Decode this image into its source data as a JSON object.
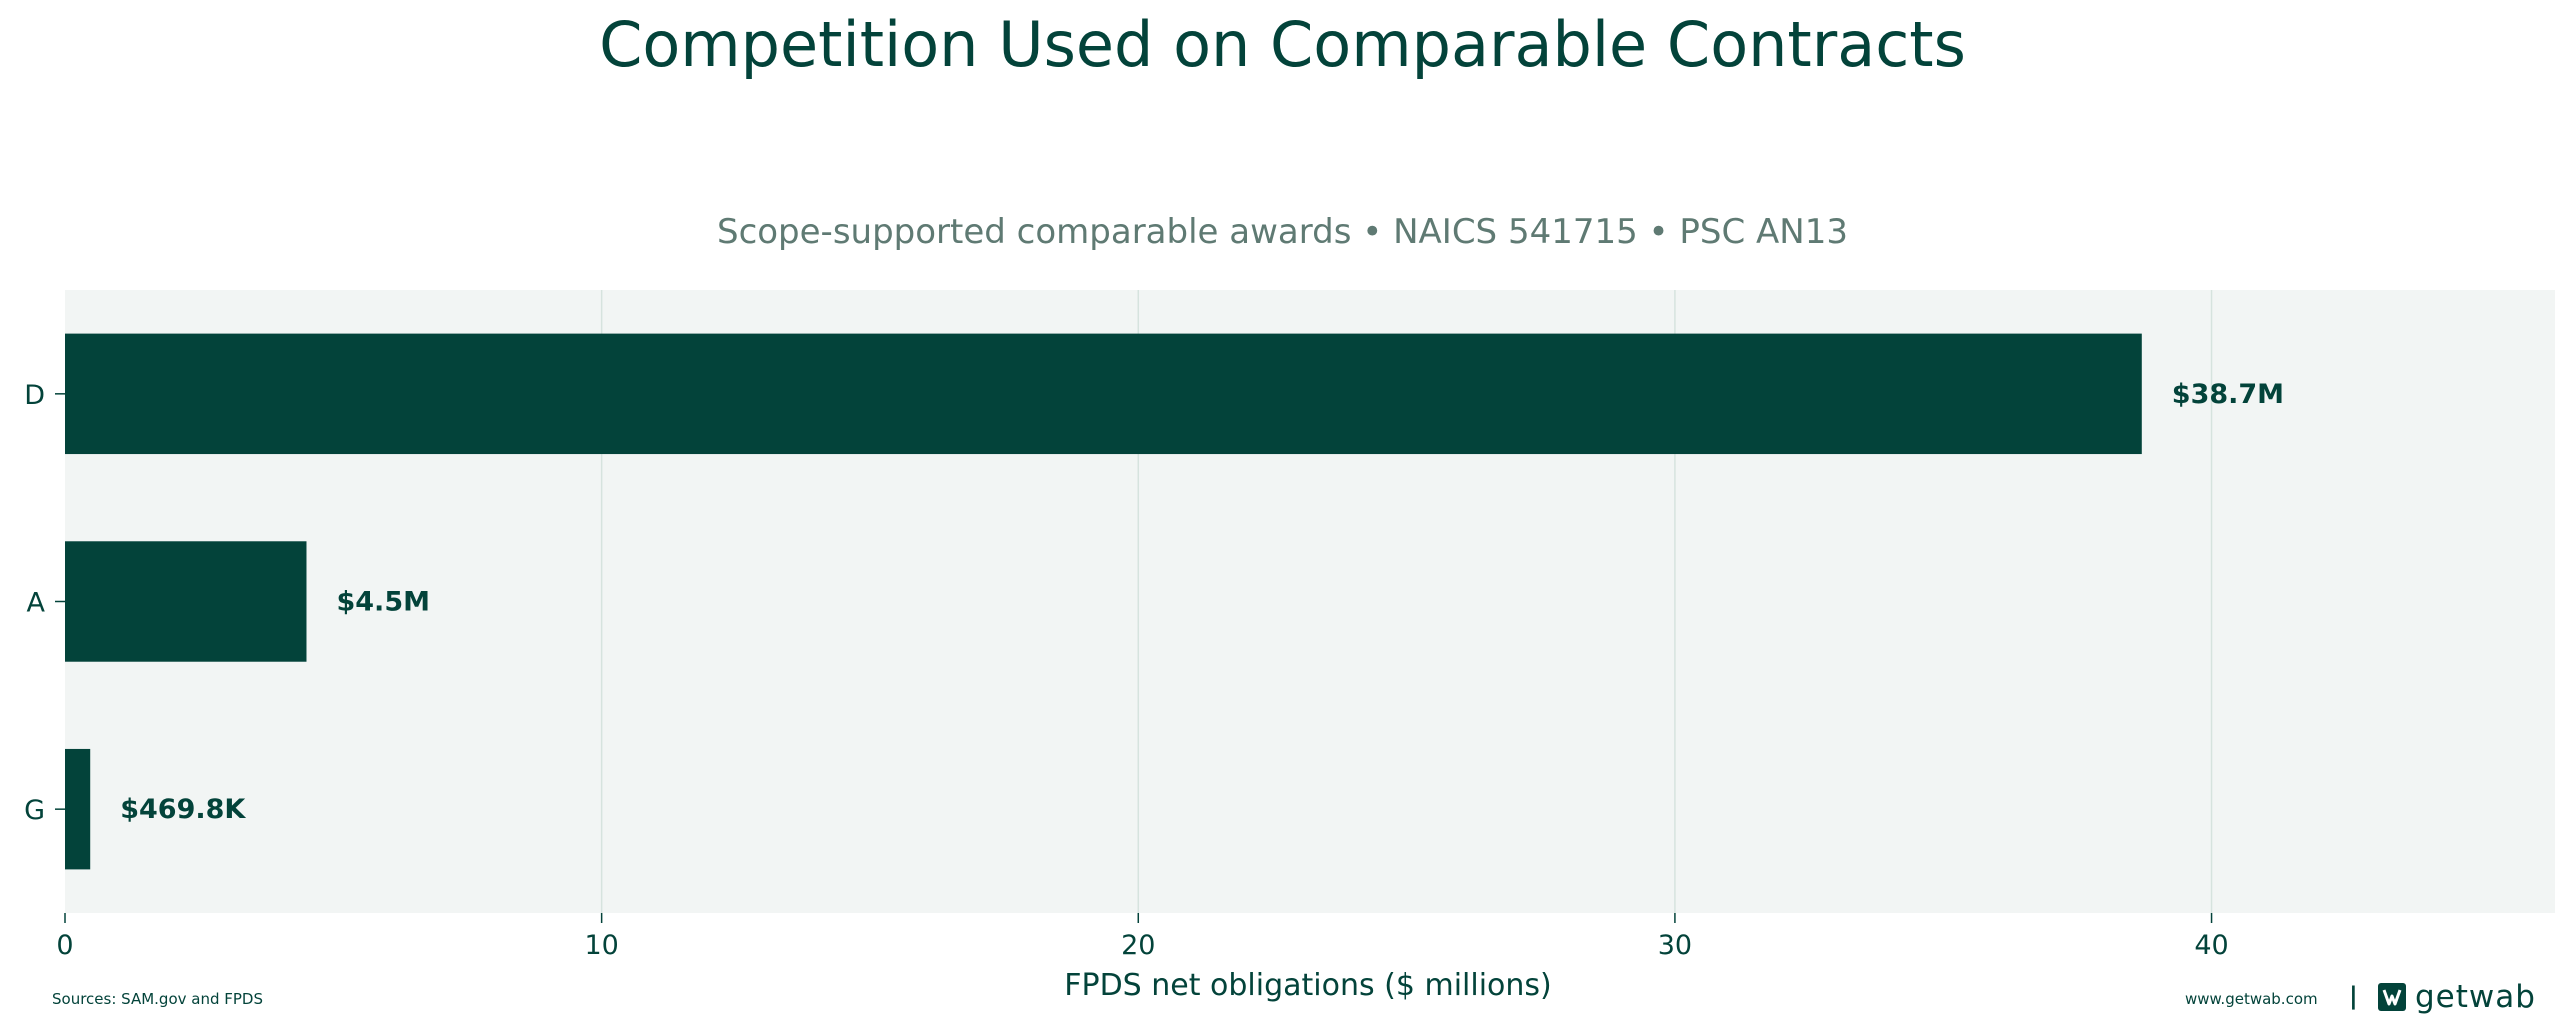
{
  "header": {
    "title": "Competition Used on Comparable Contracts",
    "subtitle": "Scope-supported comparable awards • NAICS 541715 • PSC AN13"
  },
  "footer": {
    "source": "Sources: SAM.gov and FPDS",
    "website": "www.getwab.com",
    "separator": "|",
    "brand": "getwab",
    "brand_icon": "getwab-logo-icon"
  },
  "colors": {
    "bar": "#03433a",
    "plot_background": "#f2f5f4",
    "grid": "#d6e3de",
    "text": "#03433a",
    "subtitle": "#5f7a73"
  },
  "chart_data": {
    "type": "bar",
    "orientation": "horizontal",
    "categories": [
      "D",
      "A",
      "G"
    ],
    "values": [
      38.7,
      4.5,
      0.4698
    ],
    "data_labels": [
      "$38.7M",
      "$4.5M",
      "$469.8K"
    ],
    "xlabel": "FPDS net obligations ($ millions)",
    "ylabel": "",
    "xlim": [
      0,
      46.4
    ],
    "xticks": [
      0,
      10,
      20,
      30,
      40
    ],
    "grid": true
  }
}
